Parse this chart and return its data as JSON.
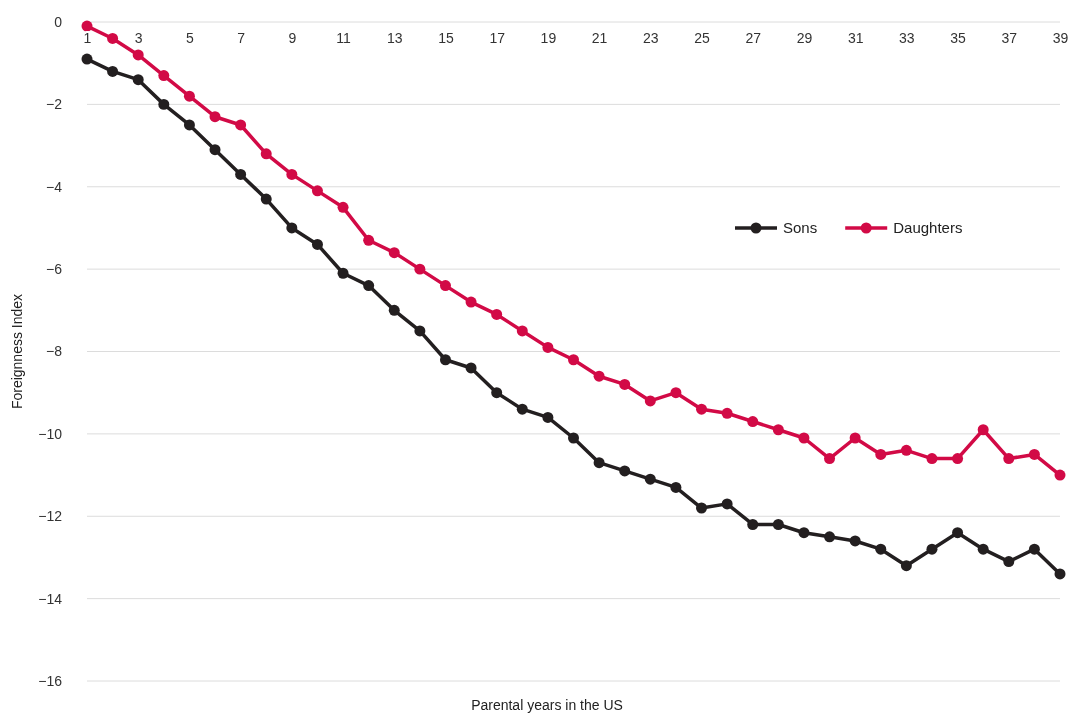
{
  "chart_data": {
    "type": "line",
    "xlabel": "Parental years in the US",
    "ylabel": "Foreignness Index",
    "x": [
      1,
      2,
      3,
      4,
      5,
      6,
      7,
      8,
      9,
      10,
      11,
      12,
      13,
      14,
      15,
      16,
      17,
      18,
      19,
      20,
      21,
      22,
      23,
      24,
      25,
      26,
      27,
      28,
      29,
      30,
      31,
      32,
      33,
      34,
      35,
      36,
      37,
      38,
      39
    ],
    "series": [
      {
        "name": "Sons",
        "color": "#231f20",
        "values": [
          -0.9,
          -1.2,
          -1.4,
          -2.0,
          -2.5,
          -3.1,
          -3.7,
          -4.3,
          -5.0,
          -5.4,
          -6.1,
          -6.4,
          -7.0,
          -7.5,
          -8.2,
          -8.4,
          -9.0,
          -9.4,
          -9.6,
          -10.1,
          -10.7,
          -10.9,
          -11.1,
          -11.3,
          -11.8,
          -11.7,
          -12.2,
          -12.2,
          -12.4,
          -12.5,
          -12.6,
          -12.8,
          -13.2,
          -12.8,
          -12.4,
          -12.8,
          -13.1,
          -12.8,
          -13.4
        ]
      },
      {
        "name": "Daughters",
        "color": "#d20a46",
        "values": [
          -0.1,
          -0.4,
          -0.8,
          -1.3,
          -1.8,
          -2.3,
          -2.5,
          -3.2,
          -3.7,
          -4.1,
          -4.5,
          -5.3,
          -5.6,
          -6.0,
          -6.4,
          -6.8,
          -7.1,
          -7.5,
          -7.9,
          -8.2,
          -8.6,
          -8.8,
          -9.2,
          -9.0,
          -9.4,
          -9.5,
          -9.7,
          -9.9,
          -10.1,
          -10.6,
          -10.1,
          -10.5,
          -10.4,
          -10.6,
          -10.6,
          -9.9,
          -10.6,
          -10.5,
          -11.0
        ]
      }
    ],
    "xlim": [
      1,
      39
    ],
    "xticks": [
      1,
      3,
      5,
      7,
      9,
      11,
      13,
      15,
      17,
      19,
      21,
      23,
      25,
      27,
      29,
      31,
      33,
      35,
      37,
      39
    ],
    "ylim": [
      -16,
      0
    ],
    "yticks": [
      {
        "value": -16,
        "label": "−16"
      },
      {
        "value": -14,
        "label": "−14"
      },
      {
        "value": -12,
        "label": "−12"
      },
      {
        "value": -10,
        "label": "−10"
      },
      {
        "value": -8,
        "label": "−8"
      },
      {
        "value": -6,
        "label": "−6"
      },
      {
        "value": -4,
        "label": "−4"
      },
      {
        "value": -2,
        "label": "−2"
      },
      0
    ],
    "grid": "y",
    "legend": "right",
    "marker": "circle",
    "line_style": "solid"
  }
}
